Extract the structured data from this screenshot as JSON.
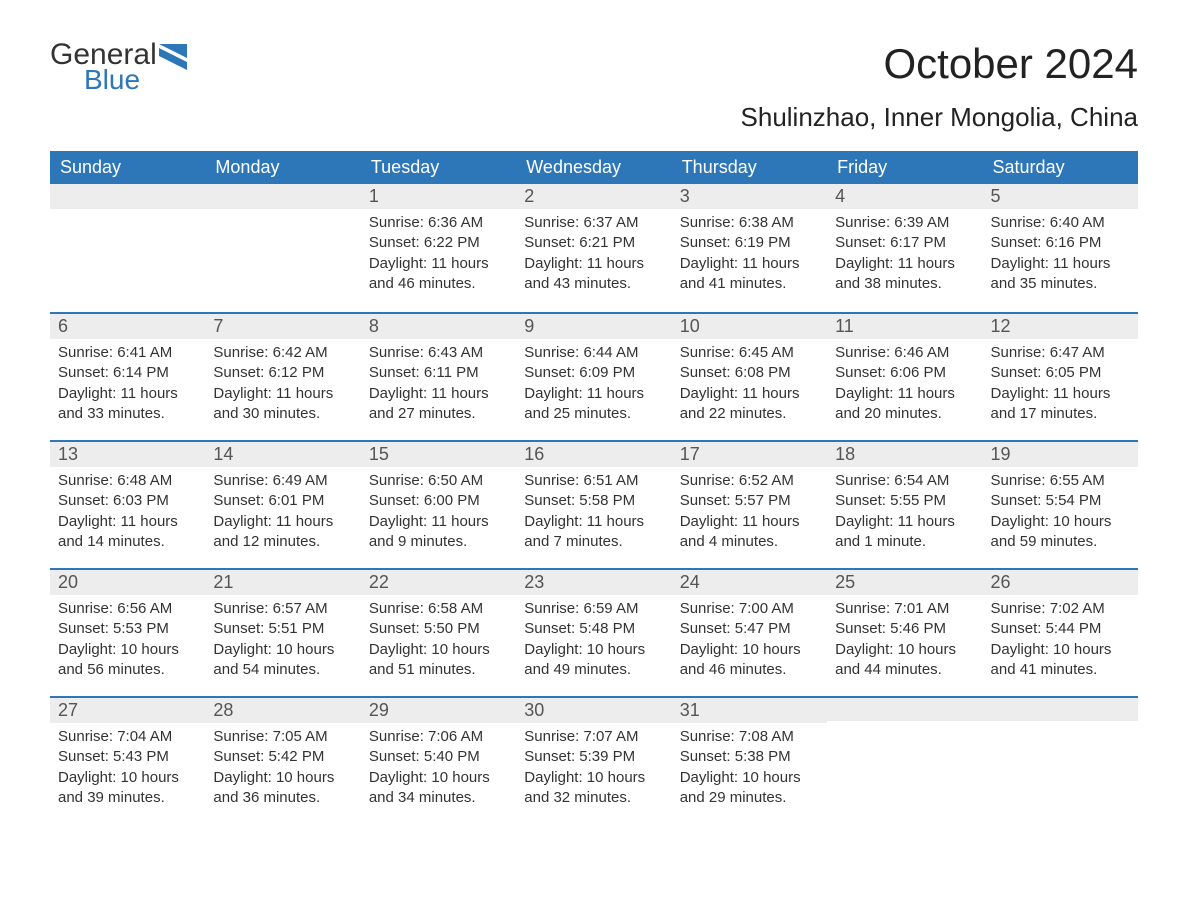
{
  "logo": {
    "word1": "General",
    "word2": "Blue"
  },
  "title": "October 2024",
  "subtitle": "Shulinzhao, Inner Mongolia, China",
  "colors": {
    "header_bg": "#2d77b8",
    "header_fg": "#ffffff",
    "daynum_bg": "#ededed",
    "row_divider": "#2d77b8",
    "text": "#333333",
    "background": "#ffffff"
  },
  "weekdays": [
    "Sunday",
    "Monday",
    "Tuesday",
    "Wednesday",
    "Thursday",
    "Friday",
    "Saturday"
  ],
  "weeks": [
    [
      null,
      null,
      {
        "n": "1",
        "sr": "Sunrise: 6:36 AM",
        "ss": "Sunset: 6:22 PM",
        "dl": "Daylight: 11 hours and 46 minutes."
      },
      {
        "n": "2",
        "sr": "Sunrise: 6:37 AM",
        "ss": "Sunset: 6:21 PM",
        "dl": "Daylight: 11 hours and 43 minutes."
      },
      {
        "n": "3",
        "sr": "Sunrise: 6:38 AM",
        "ss": "Sunset: 6:19 PM",
        "dl": "Daylight: 11 hours and 41 minutes."
      },
      {
        "n": "4",
        "sr": "Sunrise: 6:39 AM",
        "ss": "Sunset: 6:17 PM",
        "dl": "Daylight: 11 hours and 38 minutes."
      },
      {
        "n": "5",
        "sr": "Sunrise: 6:40 AM",
        "ss": "Sunset: 6:16 PM",
        "dl": "Daylight: 11 hours and 35 minutes."
      }
    ],
    [
      {
        "n": "6",
        "sr": "Sunrise: 6:41 AM",
        "ss": "Sunset: 6:14 PM",
        "dl": "Daylight: 11 hours and 33 minutes."
      },
      {
        "n": "7",
        "sr": "Sunrise: 6:42 AM",
        "ss": "Sunset: 6:12 PM",
        "dl": "Daylight: 11 hours and 30 minutes."
      },
      {
        "n": "8",
        "sr": "Sunrise: 6:43 AM",
        "ss": "Sunset: 6:11 PM",
        "dl": "Daylight: 11 hours and 27 minutes."
      },
      {
        "n": "9",
        "sr": "Sunrise: 6:44 AM",
        "ss": "Sunset: 6:09 PM",
        "dl": "Daylight: 11 hours and 25 minutes."
      },
      {
        "n": "10",
        "sr": "Sunrise: 6:45 AM",
        "ss": "Sunset: 6:08 PM",
        "dl": "Daylight: 11 hours and 22 minutes."
      },
      {
        "n": "11",
        "sr": "Sunrise: 6:46 AM",
        "ss": "Sunset: 6:06 PM",
        "dl": "Daylight: 11 hours and 20 minutes."
      },
      {
        "n": "12",
        "sr": "Sunrise: 6:47 AM",
        "ss": "Sunset: 6:05 PM",
        "dl": "Daylight: 11 hours and 17 minutes."
      }
    ],
    [
      {
        "n": "13",
        "sr": "Sunrise: 6:48 AM",
        "ss": "Sunset: 6:03 PM",
        "dl": "Daylight: 11 hours and 14 minutes."
      },
      {
        "n": "14",
        "sr": "Sunrise: 6:49 AM",
        "ss": "Sunset: 6:01 PM",
        "dl": "Daylight: 11 hours and 12 minutes."
      },
      {
        "n": "15",
        "sr": "Sunrise: 6:50 AM",
        "ss": "Sunset: 6:00 PM",
        "dl": "Daylight: 11 hours and 9 minutes."
      },
      {
        "n": "16",
        "sr": "Sunrise: 6:51 AM",
        "ss": "Sunset: 5:58 PM",
        "dl": "Daylight: 11 hours and 7 minutes."
      },
      {
        "n": "17",
        "sr": "Sunrise: 6:52 AM",
        "ss": "Sunset: 5:57 PM",
        "dl": "Daylight: 11 hours and 4 minutes."
      },
      {
        "n": "18",
        "sr": "Sunrise: 6:54 AM",
        "ss": "Sunset: 5:55 PM",
        "dl": "Daylight: 11 hours and 1 minute."
      },
      {
        "n": "19",
        "sr": "Sunrise: 6:55 AM",
        "ss": "Sunset: 5:54 PM",
        "dl": "Daylight: 10 hours and 59 minutes."
      }
    ],
    [
      {
        "n": "20",
        "sr": "Sunrise: 6:56 AM",
        "ss": "Sunset: 5:53 PM",
        "dl": "Daylight: 10 hours and 56 minutes."
      },
      {
        "n": "21",
        "sr": "Sunrise: 6:57 AM",
        "ss": "Sunset: 5:51 PM",
        "dl": "Daylight: 10 hours and 54 minutes."
      },
      {
        "n": "22",
        "sr": "Sunrise: 6:58 AM",
        "ss": "Sunset: 5:50 PM",
        "dl": "Daylight: 10 hours and 51 minutes."
      },
      {
        "n": "23",
        "sr": "Sunrise: 6:59 AM",
        "ss": "Sunset: 5:48 PM",
        "dl": "Daylight: 10 hours and 49 minutes."
      },
      {
        "n": "24",
        "sr": "Sunrise: 7:00 AM",
        "ss": "Sunset: 5:47 PM",
        "dl": "Daylight: 10 hours and 46 minutes."
      },
      {
        "n": "25",
        "sr": "Sunrise: 7:01 AM",
        "ss": "Sunset: 5:46 PM",
        "dl": "Daylight: 10 hours and 44 minutes."
      },
      {
        "n": "26",
        "sr": "Sunrise: 7:02 AM",
        "ss": "Sunset: 5:44 PM",
        "dl": "Daylight: 10 hours and 41 minutes."
      }
    ],
    [
      {
        "n": "27",
        "sr": "Sunrise: 7:04 AM",
        "ss": "Sunset: 5:43 PM",
        "dl": "Daylight: 10 hours and 39 minutes."
      },
      {
        "n": "28",
        "sr": "Sunrise: 7:05 AM",
        "ss": "Sunset: 5:42 PM",
        "dl": "Daylight: 10 hours and 36 minutes."
      },
      {
        "n": "29",
        "sr": "Sunrise: 7:06 AM",
        "ss": "Sunset: 5:40 PM",
        "dl": "Daylight: 10 hours and 34 minutes."
      },
      {
        "n": "30",
        "sr": "Sunrise: 7:07 AM",
        "ss": "Sunset: 5:39 PM",
        "dl": "Daylight: 10 hours and 32 minutes."
      },
      {
        "n": "31",
        "sr": "Sunrise: 7:08 AM",
        "ss": "Sunset: 5:38 PM",
        "dl": "Daylight: 10 hours and 29 minutes."
      },
      null,
      null
    ]
  ]
}
